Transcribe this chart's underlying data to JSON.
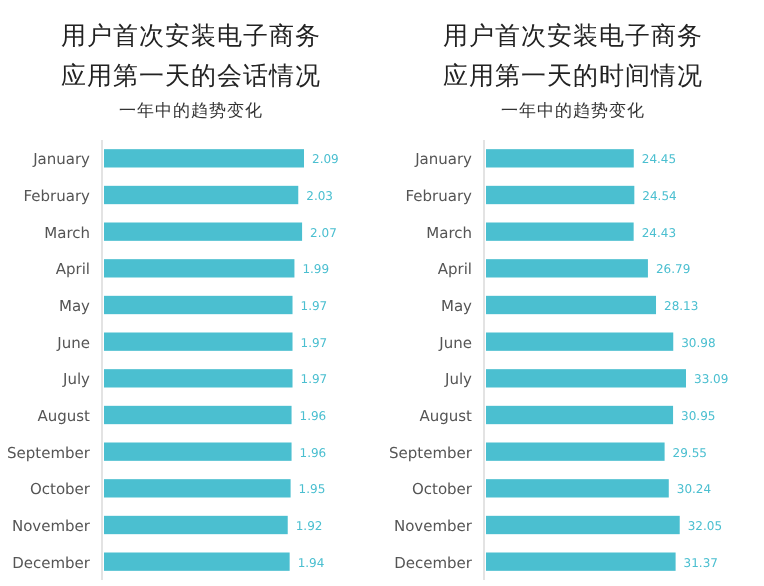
{
  "chart_data": [
    {
      "type": "bar",
      "orientation": "horizontal",
      "title": "用户首次安装电子商务应用第一天的会话情况",
      "subtitle": "一年中的趋势变化",
      "color": "#4bbfd0",
      "data_labels": true,
      "categories": [
        "January",
        "February",
        "March",
        "April",
        "May",
        "June",
        "July",
        "August",
        "September",
        "October",
        "November",
        "December"
      ],
      "values": [
        2.09,
        2.03,
        2.07,
        1.99,
        1.97,
        1.97,
        1.97,
        1.96,
        1.96,
        1.95,
        1.92,
        1.94
      ]
    },
    {
      "type": "bar",
      "orientation": "horizontal",
      "title": "用户首次安装电子商务应用第一天的时间情况",
      "subtitle": "一年中的趋势变化",
      "color": "#4bbfd0",
      "data_labels": true,
      "categories": [
        "January",
        "February",
        "March",
        "April",
        "May",
        "June",
        "July",
        "August",
        "September",
        "October",
        "November",
        "December"
      ],
      "values": [
        24.45,
        24.54,
        24.43,
        26.79,
        28.13,
        30.98,
        33.09,
        30.95,
        29.55,
        30.24,
        32.05,
        31.37
      ]
    }
  ]
}
